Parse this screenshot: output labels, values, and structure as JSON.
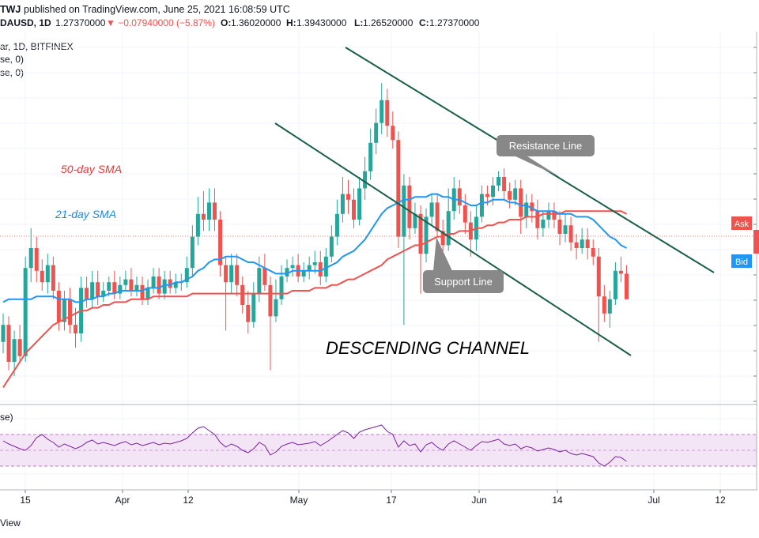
{
  "header": {
    "author": "TWJ",
    "published": "published on TradingView.com, June 25, 2021 16:08:59 UTC",
    "symbol_short": "DAUSD, 1D",
    "price": "1.27370000",
    "change": "▼ −0.07940000 (−5.87%)",
    "ohlc": {
      "O": "1.36020000",
      "H": "1.39430000",
      "L": "1.26520000",
      "C": "1.27370000"
    }
  },
  "symbol_line": "ar, 1D, BITFINEX",
  "indicator_lines": [
    "se, 0)",
    "se, 0)"
  ],
  "rsi_label": "se)",
  "footer": "View",
  "colors": {
    "up": "#26a69a",
    "down": "#ef5350",
    "sma50": "#ef5350",
    "sma21": "#2196f3",
    "channel": "#1b5e4a",
    "rsi_line": "#7b1fa2",
    "rsi_band": "#f3e5f5"
  },
  "chart_data": {
    "type": "candlestick",
    "symbol": "BITFINEX",
    "timeframe": "1D",
    "x_ticks": [
      "15",
      "Apr",
      "12",
      "May",
      "17",
      "Jun",
      "14",
      "Jul",
      "12"
    ],
    "ylim": [
      0.9,
      2.15
    ],
    "candles": [
      [
        1.12,
        1.18,
        1.22,
        1.08
      ],
      [
        1.18,
        1.05,
        1.21,
        1.02
      ],
      [
        1.05,
        1.13,
        1.16,
        1.0
      ],
      [
        1.13,
        1.07,
        1.18,
        1.05
      ],
      [
        1.07,
        1.38,
        1.42,
        1.05
      ],
      [
        1.38,
        1.45,
        1.52,
        1.33
      ],
      [
        1.45,
        1.37,
        1.49,
        1.33
      ],
      [
        1.37,
        1.33,
        1.41,
        1.3
      ],
      [
        1.33,
        1.39,
        1.43,
        1.29
      ],
      [
        1.39,
        1.3,
        1.42,
        1.27
      ],
      [
        1.3,
        1.19,
        1.33,
        1.16
      ],
      [
        1.19,
        1.27,
        1.3,
        1.16
      ],
      [
        1.27,
        1.18,
        1.31,
        1.15
      ],
      [
        1.18,
        1.15,
        1.24,
        1.1
      ],
      [
        1.15,
        1.31,
        1.35,
        1.12
      ],
      [
        1.31,
        1.27,
        1.35,
        1.24
      ],
      [
        1.27,
        1.33,
        1.37,
        1.24
      ],
      [
        1.33,
        1.28,
        1.37,
        1.25
      ],
      [
        1.28,
        1.3,
        1.33,
        1.26
      ],
      [
        1.3,
        1.33,
        1.35,
        1.28
      ],
      [
        1.33,
        1.29,
        1.37,
        1.27
      ],
      [
        1.29,
        1.32,
        1.35,
        1.27
      ],
      [
        1.32,
        1.34,
        1.37,
        1.3
      ],
      [
        1.34,
        1.3,
        1.38,
        1.28
      ],
      [
        1.3,
        1.32,
        1.35,
        1.28
      ],
      [
        1.32,
        1.27,
        1.35,
        1.25
      ],
      [
        1.27,
        1.31,
        1.34,
        1.25
      ],
      [
        1.31,
        1.35,
        1.38,
        1.29
      ],
      [
        1.35,
        1.29,
        1.38,
        1.27
      ],
      [
        1.29,
        1.34,
        1.37,
        1.27
      ],
      [
        1.34,
        1.31,
        1.37,
        1.29
      ],
      [
        1.31,
        1.33,
        1.36,
        1.29
      ],
      [
        1.33,
        1.33,
        1.36,
        1.3
      ],
      [
        1.33,
        1.38,
        1.42,
        1.31
      ],
      [
        1.38,
        1.49,
        1.53,
        1.35
      ],
      [
        1.49,
        1.57,
        1.63,
        1.46
      ],
      [
        1.57,
        1.55,
        1.65,
        1.51
      ],
      [
        1.55,
        1.61,
        1.66,
        1.51
      ],
      [
        1.61,
        1.55,
        1.66,
        1.51
      ],
      [
        1.55,
        1.39,
        1.58,
        1.35
      ],
      [
        1.39,
        1.33,
        1.42,
        1.16
      ],
      [
        1.33,
        1.39,
        1.43,
        1.29
      ],
      [
        1.39,
        1.32,
        1.43,
        1.28
      ],
      [
        1.32,
        1.25,
        1.35,
        1.22
      ],
      [
        1.25,
        1.19,
        1.3,
        1.15
      ],
      [
        1.19,
        1.29,
        1.33,
        1.17
      ],
      [
        1.29,
        1.38,
        1.42,
        1.26
      ],
      [
        1.38,
        1.32,
        1.43,
        1.3
      ],
      [
        1.32,
        1.21,
        1.35,
        1.02
      ],
      [
        1.21,
        1.27,
        1.34,
        1.19
      ],
      [
        1.27,
        1.35,
        1.39,
        1.25
      ],
      [
        1.35,
        1.38,
        1.41,
        1.33
      ],
      [
        1.38,
        1.39,
        1.42,
        1.35
      ],
      [
        1.39,
        1.35,
        1.43,
        1.33
      ],
      [
        1.35,
        1.37,
        1.4,
        1.33
      ],
      [
        1.37,
        1.39,
        1.42,
        1.34
      ],
      [
        1.39,
        1.4,
        1.44,
        1.36
      ],
      [
        1.4,
        1.35,
        1.44,
        1.32
      ],
      [
        1.35,
        1.42,
        1.45,
        1.33
      ],
      [
        1.42,
        1.49,
        1.53,
        1.4
      ],
      [
        1.49,
        1.57,
        1.62,
        1.46
      ],
      [
        1.57,
        1.64,
        1.7,
        1.54
      ],
      [
        1.64,
        1.62,
        1.69,
        1.57
      ],
      [
        1.62,
        1.55,
        1.66,
        1.52
      ],
      [
        1.55,
        1.66,
        1.7,
        1.53
      ],
      [
        1.66,
        1.72,
        1.77,
        1.62
      ],
      [
        1.72,
        1.82,
        1.87,
        1.69
      ],
      [
        1.82,
        1.89,
        1.94,
        1.78
      ],
      [
        1.89,
        1.97,
        2.03,
        1.85
      ],
      [
        1.97,
        1.88,
        2.01,
        1.84
      ],
      [
        1.88,
        1.83,
        1.93,
        1.8
      ],
      [
        1.83,
        1.49,
        1.86,
        1.45
      ],
      [
        1.49,
        1.67,
        1.71,
        1.18
      ],
      [
        1.67,
        1.52,
        1.7,
        1.48
      ],
      [
        1.52,
        1.57,
        1.61,
        1.5
      ],
      [
        1.57,
        1.43,
        1.6,
        1.29
      ],
      [
        1.43,
        1.56,
        1.59,
        1.4
      ],
      [
        1.56,
        1.61,
        1.64,
        1.53
      ],
      [
        1.61,
        1.51,
        1.64,
        1.49
      ],
      [
        1.51,
        1.46,
        1.55,
        1.43
      ],
      [
        1.46,
        1.58,
        1.66,
        1.44
      ],
      [
        1.58,
        1.66,
        1.7,
        1.55
      ],
      [
        1.66,
        1.6,
        1.69,
        1.57
      ],
      [
        1.6,
        1.54,
        1.64,
        1.5
      ],
      [
        1.54,
        1.48,
        1.58,
        1.42
      ],
      [
        1.48,
        1.56,
        1.6,
        1.44
      ],
      [
        1.56,
        1.64,
        1.67,
        1.54
      ],
      [
        1.64,
        1.63,
        1.67,
        1.6
      ],
      [
        1.63,
        1.67,
        1.7,
        1.6
      ],
      [
        1.67,
        1.7,
        1.72,
        1.65
      ],
      [
        1.7,
        1.65,
        1.73,
        1.62
      ],
      [
        1.65,
        1.62,
        1.68,
        1.59
      ],
      [
        1.62,
        1.66,
        1.69,
        1.6
      ],
      [
        1.66,
        1.56,
        1.69,
        1.5
      ],
      [
        1.56,
        1.61,
        1.64,
        1.52
      ],
      [
        1.61,
        1.58,
        1.64,
        1.54
      ],
      [
        1.58,
        1.52,
        1.62,
        1.48
      ],
      [
        1.52,
        1.55,
        1.58,
        1.49
      ],
      [
        1.55,
        1.58,
        1.61,
        1.52
      ],
      [
        1.58,
        1.55,
        1.61,
        1.52
      ],
      [
        1.55,
        1.5,
        1.58,
        1.46
      ],
      [
        1.5,
        1.53,
        1.57,
        1.47
      ],
      [
        1.53,
        1.47,
        1.56,
        1.44
      ],
      [
        1.47,
        1.45,
        1.5,
        1.41
      ],
      [
        1.45,
        1.48,
        1.52,
        1.43
      ],
      [
        1.48,
        1.45,
        1.52,
        1.41
      ],
      [
        1.45,
        1.42,
        1.48,
        1.39
      ],
      [
        1.42,
        1.28,
        1.45,
        1.12
      ],
      [
        1.28,
        1.22,
        1.32,
        1.19
      ],
      [
        1.22,
        1.27,
        1.3,
        1.17
      ],
      [
        1.27,
        1.37,
        1.4,
        1.25
      ],
      [
        1.37,
        1.36,
        1.42,
        1.33
      ],
      [
        1.36,
        1.27,
        1.39,
        1.27
      ]
    ],
    "sma21": [
      1.26,
      1.27,
      1.27,
      1.27,
      1.27,
      1.27,
      1.28,
      1.28,
      1.28,
      1.28,
      1.27,
      1.27,
      1.27,
      1.26,
      1.26,
      1.27,
      1.27,
      1.28,
      1.28,
      1.29,
      1.29,
      1.3,
      1.3,
      1.3,
      1.3,
      1.3,
      1.31,
      1.31,
      1.31,
      1.32,
      1.32,
      1.33,
      1.33,
      1.34,
      1.35,
      1.37,
      1.38,
      1.4,
      1.41,
      1.41,
      1.42,
      1.42,
      1.42,
      1.41,
      1.4,
      1.4,
      1.39,
      1.38,
      1.37,
      1.36,
      1.36,
      1.36,
      1.37,
      1.37,
      1.37,
      1.37,
      1.37,
      1.37,
      1.38,
      1.39,
      1.4,
      1.42,
      1.43,
      1.44,
      1.46,
      1.48,
      1.51,
      1.54,
      1.57,
      1.59,
      1.6,
      1.61,
      1.62,
      1.62,
      1.63,
      1.63,
      1.63,
      1.64,
      1.64,
      1.63,
      1.63,
      1.62,
      1.62,
      1.61,
      1.6,
      1.6,
      1.61,
      1.61,
      1.62,
      1.62,
      1.62,
      1.61,
      1.61,
      1.6,
      1.6,
      1.59,
      1.58,
      1.58,
      1.58,
      1.58,
      1.57,
      1.57,
      1.57,
      1.56,
      1.56,
      1.56,
      1.55,
      1.53,
      1.51,
      1.49,
      1.48,
      1.46,
      1.45
    ],
    "sma50": [
      0.96,
      0.99,
      1.02,
      1.05,
      1.08,
      1.1,
      1.12,
      1.14,
      1.16,
      1.18,
      1.19,
      1.2,
      1.21,
      1.22,
      1.23,
      1.23,
      1.24,
      1.24,
      1.25,
      1.25,
      1.26,
      1.26,
      1.26,
      1.27,
      1.27,
      1.27,
      1.27,
      1.28,
      1.28,
      1.28,
      1.28,
      1.28,
      1.28,
      1.28,
      1.29,
      1.29,
      1.29,
      1.29,
      1.29,
      1.29,
      1.29,
      1.29,
      1.29,
      1.29,
      1.29,
      1.29,
      1.29,
      1.29,
      1.29,
      1.29,
      1.29,
      1.29,
      1.3,
      1.3,
      1.3,
      1.3,
      1.31,
      1.31,
      1.31,
      1.32,
      1.32,
      1.33,
      1.34,
      1.34,
      1.35,
      1.36,
      1.37,
      1.38,
      1.39,
      1.41,
      1.42,
      1.43,
      1.44,
      1.45,
      1.46,
      1.46,
      1.47,
      1.48,
      1.49,
      1.49,
      1.5,
      1.5,
      1.51,
      1.51,
      1.51,
      1.52,
      1.52,
      1.53,
      1.53,
      1.54,
      1.54,
      1.55,
      1.55,
      1.55,
      1.56,
      1.56,
      1.56,
      1.57,
      1.57,
      1.57,
      1.57,
      1.58,
      1.58,
      1.58,
      1.58,
      1.58,
      1.58,
      1.58,
      1.58,
      1.58,
      1.58,
      1.58,
      1.57
    ],
    "rsi": [
      62,
      58,
      55,
      52,
      50,
      56,
      66,
      70,
      64,
      60,
      54,
      58,
      55,
      52,
      55,
      60,
      63,
      58,
      60,
      58,
      56,
      59,
      61,
      57,
      59,
      56,
      58,
      60,
      57,
      59,
      58,
      60,
      62,
      65,
      72,
      78,
      80,
      75,
      70,
      60,
      54,
      58,
      55,
      50,
      47,
      52,
      60,
      56,
      44,
      48,
      55,
      58,
      60,
      57,
      58,
      59,
      61,
      56,
      60,
      65,
      70,
      75,
      72,
      65,
      73,
      76,
      78,
      80,
      82,
      74,
      70,
      54,
      62,
      56,
      58,
      48,
      57,
      60,
      54,
      50,
      58,
      62,
      58,
      54,
      50,
      56,
      61,
      60,
      62,
      64,
      58,
      56,
      58,
      52,
      55,
      53,
      49,
      51,
      53,
      51,
      48,
      50,
      46,
      44,
      46,
      44,
      42,
      34,
      30,
      35,
      42,
      41,
      36
    ],
    "rsi_band": [
      30,
      70
    ],
    "annotations": {
      "sma50_label": "50-day SMA",
      "sma21_label": "21-day SMA",
      "resistance": "Resistance Line",
      "support": "Support Line",
      "channel": "DESCENDING CHANNEL"
    },
    "price_tags": {
      "ask": "Ask",
      "bid": "Bid"
    },
    "grid": true
  }
}
